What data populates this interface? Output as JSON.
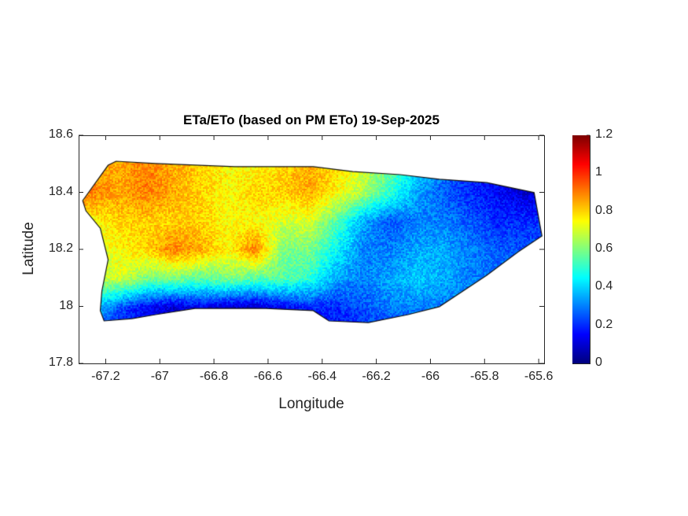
{
  "chart_data": {
    "type": "heatmap",
    "title": "ETa/ETo (based on PM ETo) 19-Sep-2025",
    "xlabel": "Longitude",
    "ylabel": "Latitude",
    "xlim": [
      -67.3,
      -65.58
    ],
    "ylim": [
      17.8,
      18.6
    ],
    "xticks": [
      -67.2,
      -67,
      -66.8,
      -66.6,
      -66.4,
      -66.2,
      -66,
      -65.8,
      -65.6
    ],
    "xtick_labels": [
      "-67.2",
      "-67",
      "-66.8",
      "-66.6",
      "-66.4",
      "-66.2",
      "-66",
      "-65.8",
      "-65.6"
    ],
    "yticks": [
      17.8,
      18,
      18.2,
      18.4,
      18.6
    ],
    "ytick_labels": [
      "17.8",
      "18",
      "18.2",
      "18.4",
      "18.6"
    ],
    "colorbar": {
      "colormap": "jet",
      "range": [
        0,
        1.2
      ],
      "ticks": [
        0,
        0.2,
        0.4,
        0.6,
        0.8,
        1,
        1.2
      ],
      "tick_labels": [
        "0",
        "0.2",
        "0.4",
        "0.6",
        "0.8",
        "1",
        "1.2"
      ]
    },
    "grid": false,
    "grid_lon": [
      -67.25,
      -67.15,
      -67.05,
      -66.95,
      -66.85,
      -66.75,
      -66.65,
      -66.55,
      -66.45,
      -66.35,
      -66.25,
      -66.15,
      -66.05,
      -65.95,
      -65.85,
      -65.75,
      -65.65
    ],
    "grid_lat": [
      18.5,
      18.4,
      18.3,
      18.2,
      18.1,
      18.0,
      17.9
    ],
    "values": [
      [
        0.85,
        0.85,
        0.9,
        0.85,
        0.8,
        0.75,
        0.75,
        0.8,
        0.85,
        0.8,
        0.7,
        0.6,
        0.4,
        0.3,
        0.2,
        0.15,
        0.15
      ],
      [
        0.9,
        0.85,
        0.9,
        0.85,
        0.8,
        0.75,
        0.8,
        0.8,
        0.85,
        0.75,
        0.65,
        0.5,
        0.35,
        0.25,
        0.2,
        0.15,
        0.1
      ],
      [
        0.75,
        0.8,
        0.8,
        0.8,
        0.8,
        0.75,
        0.75,
        0.7,
        0.7,
        0.55,
        0.35,
        0.25,
        0.3,
        0.3,
        0.25,
        0.2,
        0.2
      ],
      [
        0.7,
        0.75,
        0.8,
        0.9,
        0.85,
        0.75,
        0.9,
        0.6,
        0.6,
        0.45,
        0.3,
        0.3,
        0.35,
        0.35,
        0.3,
        0.25,
        0.25
      ],
      [
        0.65,
        0.7,
        0.6,
        0.6,
        0.55,
        0.6,
        0.55,
        0.55,
        0.5,
        0.35,
        0.3,
        0.35,
        0.4,
        0.35,
        0.3,
        0.3,
        0.3
      ],
      [
        0.4,
        0.25,
        0.15,
        0.1,
        0.15,
        0.1,
        0.1,
        0.15,
        0.2,
        0.2,
        0.25,
        0.3,
        0.3,
        0.3,
        0.3,
        0.3,
        0.3
      ],
      [
        0.2,
        0.15,
        0.1,
        0.05,
        0.1,
        0.05,
        0.05,
        0.1,
        0.15,
        0.15,
        0.2,
        0.2,
        0.2,
        0.2,
        0.2,
        0.2,
        0.2
      ]
    ],
    "island_outline": [
      [
        -67.285,
        18.371
      ],
      [
        -67.191,
        18.495
      ],
      [
        -67.162,
        18.509
      ],
      [
        -67.016,
        18.501
      ],
      [
        -66.724,
        18.49
      ],
      [
        -66.433,
        18.49
      ],
      [
        -66.287,
        18.473
      ],
      [
        -66.112,
        18.462
      ],
      [
        -65.967,
        18.446
      ],
      [
        -65.792,
        18.434
      ],
      [
        -65.617,
        18.399
      ],
      [
        -65.588,
        18.247
      ],
      [
        -65.675,
        18.192
      ],
      [
        -65.792,
        18.109
      ],
      [
        -65.967,
        17.999
      ],
      [
        -66.083,
        17.971
      ],
      [
        -66.229,
        17.943
      ],
      [
        -66.375,
        17.949
      ],
      [
        -66.433,
        17.985
      ],
      [
        -66.608,
        17.993
      ],
      [
        -66.87,
        17.993
      ],
      [
        -67.016,
        17.971
      ],
      [
        -67.103,
        17.957
      ],
      [
        -67.206,
        17.949
      ],
      [
        -67.22,
        17.985
      ],
      [
        -67.214,
        18.054
      ],
      [
        -67.191,
        18.164
      ],
      [
        -67.22,
        18.274
      ],
      [
        -67.273,
        18.335
      ]
    ]
  }
}
